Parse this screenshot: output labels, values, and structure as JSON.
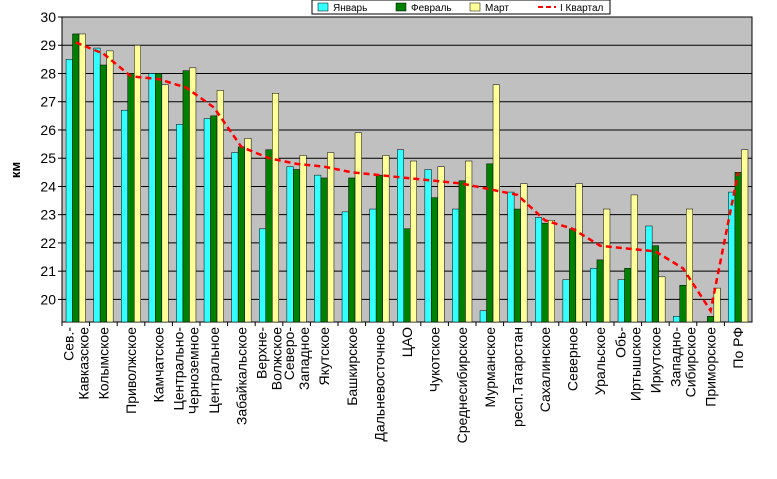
{
  "chart_data": {
    "type": "bar",
    "title": "",
    "xlabel": "",
    "ylabel": "км",
    "ylim": [
      19.2,
      30
    ],
    "yticks": [
      20,
      21,
      22,
      23,
      24,
      25,
      26,
      27,
      28,
      29,
      30
    ],
    "grid": true,
    "legend_position": "top-right",
    "categories": [
      "Сев.-Кавказское",
      "Колымское",
      "Приволжское",
      "Камчатское",
      "Центрально-Черноземное",
      "Центральное",
      "Забайкальское",
      "Верхне-Волжское",
      "Северо-Западное",
      "Якутское",
      "Башкирское",
      "Дальневосточное",
      "ЦАО",
      "Чукотское",
      "Среднесибирское",
      "Мурманское",
      "респ.Татарстан",
      "Сахалинское",
      "Северное",
      "Уральское",
      "Обь-Иртышское",
      "Иркутское",
      "Западно-Сибирское",
      "Приморское",
      "По РФ"
    ],
    "category_lines": [
      [
        "Сев.-",
        "Кавказское"
      ],
      [
        "Колымское"
      ],
      [
        "Приволжское"
      ],
      [
        "Камчатское"
      ],
      [
        "Центрально-",
        "Черноземное"
      ],
      [
        "Центральное"
      ],
      [
        "Забайкальское"
      ],
      [
        "Верхне-",
        "Волжское"
      ],
      [
        "Северо-",
        "Западное"
      ],
      [
        "Якутское"
      ],
      [
        "Башкирское"
      ],
      [
        "Дальневосточное"
      ],
      [
        "ЦАО"
      ],
      [
        "Чукотское"
      ],
      [
        "Среднесибирское"
      ],
      [
        "Мурманское"
      ],
      [
        "респ.Татарстан"
      ],
      [
        "Сахалинское"
      ],
      [
        "Северное"
      ],
      [
        "Уральское"
      ],
      [
        "Обь-",
        "Иртышское"
      ],
      [
        "Иркутское"
      ],
      [
        "Западно-",
        "Сибирское"
      ],
      [
        "Приморское"
      ],
      [
        "По РФ"
      ]
    ],
    "series": [
      {
        "name": "Январь",
        "kind": "bar",
        "color": "#33ffff",
        "values": [
          28.5,
          28.9,
          26.7,
          28.0,
          26.2,
          26.4,
          25.2,
          22.5,
          24.7,
          24.4,
          23.1,
          23.2,
          25.3,
          24.6,
          23.2,
          19.6,
          23.8,
          22.9,
          20.7,
          21.1,
          20.7,
          22.6,
          19.4,
          19.2,
          23.8
        ]
      },
      {
        "name": "Февраль",
        "kind": "bar",
        "color": "#008000",
        "values": [
          29.4,
          28.3,
          28.0,
          28.0,
          28.1,
          26.5,
          25.4,
          25.3,
          24.6,
          24.3,
          24.3,
          24.4,
          22.5,
          23.6,
          24.2,
          24.8,
          23.2,
          22.7,
          22.5,
          21.4,
          21.1,
          21.9,
          20.5,
          19.4,
          24.5
        ]
      },
      {
        "name": "Март",
        "kind": "bar",
        "color": "#ffff99",
        "values": [
          29.4,
          28.8,
          29.0,
          27.6,
          28.2,
          27.4,
          25.7,
          27.3,
          25.1,
          25.2,
          25.9,
          25.1,
          24.9,
          24.7,
          24.9,
          27.6,
          24.1,
          22.8,
          24.1,
          23.2,
          23.7,
          20.8,
          23.2,
          20.4,
          25.3
        ]
      },
      {
        "name": "I Квартал",
        "kind": "line",
        "color": "#ff0000",
        "values": [
          29.1,
          28.7,
          27.9,
          27.8,
          27.5,
          26.8,
          25.4,
          25.0,
          24.8,
          24.7,
          24.5,
          24.4,
          24.3,
          24.2,
          24.1,
          23.9,
          23.7,
          22.8,
          22.5,
          21.9,
          21.8,
          21.7,
          21.1,
          19.6,
          24.5
        ]
      }
    ]
  },
  "colors": {
    "plot_background": "#c0c0c0",
    "grid": "#000000"
  }
}
